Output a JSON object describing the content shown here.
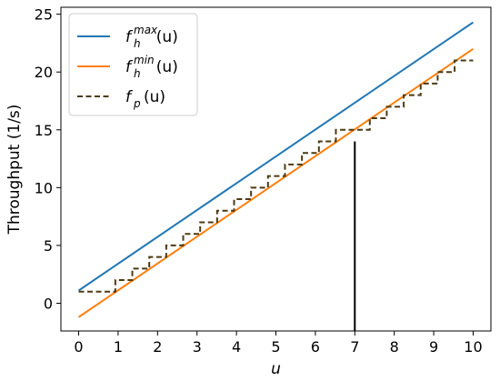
{
  "chart_data": {
    "type": "line",
    "xlabel": "u",
    "ylabel": "Throughput (1/s)",
    "xlim": [
      -0.45,
      10.45
    ],
    "ylim": [
      -2.4,
      25.6
    ],
    "xticks": [
      0,
      1,
      2,
      3,
      4,
      5,
      6,
      7,
      8,
      9,
      10
    ],
    "yticks": [
      0,
      5,
      10,
      15,
      20,
      25
    ],
    "grid": false,
    "legend_position": "top-left",
    "series": [
      {
        "key": "fh_max",
        "name": "f_h^max(u)",
        "label_base": "f",
        "label_sub": "h",
        "label_sup": "max",
        "label_arg": "(u)",
        "style": "solid",
        "color": "#1f77b4",
        "x": [
          0,
          10
        ],
        "y": [
          1.1,
          24.3
        ]
      },
      {
        "key": "fh_min",
        "name": "f_h^min(u)",
        "label_base": "f",
        "label_sub": "h",
        "label_sup": "min",
        "label_arg": "(u)",
        "style": "solid",
        "color": "#ff7f0e",
        "x": [
          0,
          10
        ],
        "y": [
          -1.2,
          22.0
        ]
      },
      {
        "key": "fp",
        "name": "f_p(u)",
        "label_base": "f",
        "label_sub": "p",
        "label_sup": "",
        "label_arg": "(u)",
        "style": "dashed-step",
        "color": "#4d3a12",
        "x": [
          0,
          0.5,
          0.93,
          1.36,
          1.79,
          2.22,
          2.65,
          3.08,
          3.51,
          3.94,
          4.37,
          4.8,
          5.23,
          5.66,
          6.09,
          6.52,
          6.95,
          7.38,
          7.81,
          8.24,
          8.67,
          9.1,
          9.53,
          10
        ],
        "y": [
          1,
          1,
          2,
          3,
          4,
          5,
          6,
          7,
          8,
          9,
          10,
          11,
          12,
          13,
          14,
          15,
          15,
          16,
          17,
          18,
          19,
          20,
          21,
          21
        ]
      }
    ],
    "annotations": [
      {
        "type": "vline",
        "x": 7,
        "y_from": -2.4,
        "y_to": 14,
        "color": "#000000"
      }
    ]
  }
}
